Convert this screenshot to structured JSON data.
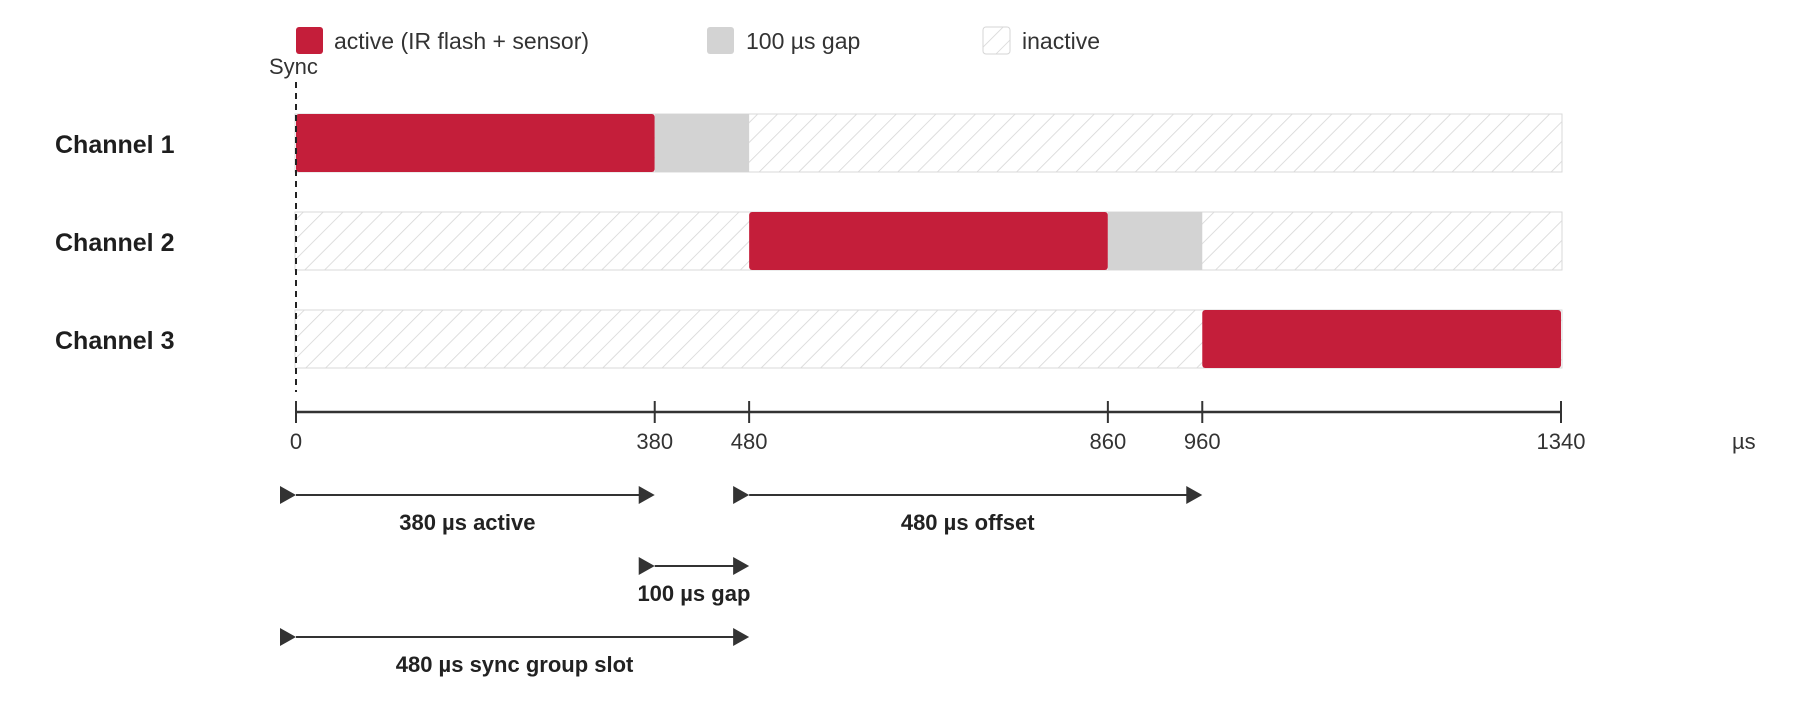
{
  "legend": {
    "active": "active (IR flash + sensor)",
    "gap": "100 µs gap",
    "inactive": "inactive"
  },
  "sync_label": "Sync",
  "axis": {
    "unit": "µs",
    "min": 0,
    "max": 1340,
    "ticks": [
      0,
      380,
      480,
      860,
      960,
      1340
    ]
  },
  "channels": [
    {
      "label": "Channel 1",
      "segments": [
        {
          "state": "active",
          "start": 0,
          "end": 380
        },
        {
          "state": "gap",
          "start": 380,
          "end": 480
        }
      ]
    },
    {
      "label": "Channel 2",
      "segments": [
        {
          "state": "active",
          "start": 480,
          "end": 860
        },
        {
          "state": "gap",
          "start": 860,
          "end": 960
        }
      ]
    },
    {
      "label": "Channel 3",
      "segments": [
        {
          "state": "active",
          "start": 960,
          "end": 1340
        }
      ]
    }
  ],
  "dimensions": [
    {
      "label": "380 µs active",
      "start": 0,
      "end": 380
    },
    {
      "label": "480 µs offset",
      "start": 480,
      "end": 960
    },
    {
      "label": "100 µs gap",
      "start": 380,
      "end": 480
    },
    {
      "label": "480 µs sync group slot",
      "start": 0,
      "end": 480
    }
  ],
  "colors": {
    "active": "#c41e3a",
    "gap": "#d3d3d3",
    "hatch": "#d6d6d6",
    "axis": "#333333"
  }
}
